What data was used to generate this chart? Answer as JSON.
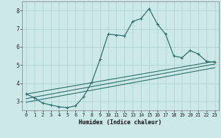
{
  "xlabel": "Humidex (Indice chaleur)",
  "ylabel": "",
  "bg_color": "#cce8e8",
  "plot_bg_color": "#cce8e8",
  "line_color": "#2a6b6b",
  "grid_color": "#aacece",
  "xlim": [
    -0.5,
    23.5
  ],
  "ylim": [
    2.5,
    8.5
  ],
  "yticks": [
    3,
    4,
    5,
    6,
    7,
    8
  ],
  "xticks": [
    0,
    1,
    2,
    3,
    4,
    5,
    6,
    7,
    8,
    9,
    10,
    11,
    12,
    13,
    14,
    15,
    16,
    17,
    18,
    19,
    20,
    21,
    22,
    23
  ],
  "line1_x": [
    0,
    1,
    2,
    3,
    4,
    5,
    6,
    7,
    8,
    9,
    10,
    11,
    12,
    13,
    14,
    15,
    16,
    17,
    18,
    19,
    20,
    21,
    22,
    23
  ],
  "line1_y": [
    3.4,
    3.2,
    2.9,
    2.8,
    2.7,
    2.65,
    2.75,
    3.25,
    4.05,
    5.3,
    6.7,
    6.65,
    6.6,
    7.4,
    7.55,
    8.1,
    7.25,
    6.7,
    5.5,
    5.4,
    5.8,
    5.6,
    5.2,
    5.15
  ],
  "line2_x": [
    0,
    23
  ],
  "line2_y": [
    3.4,
    5.2
  ],
  "line3_x": [
    0,
    23
  ],
  "line3_y": [
    3.15,
    5.05
  ],
  "line4_x": [
    0,
    23
  ],
  "line4_y": [
    2.95,
    4.85
  ],
  "xlabel_fontsize": 6.0,
  "tick_fontsize": 5.0
}
